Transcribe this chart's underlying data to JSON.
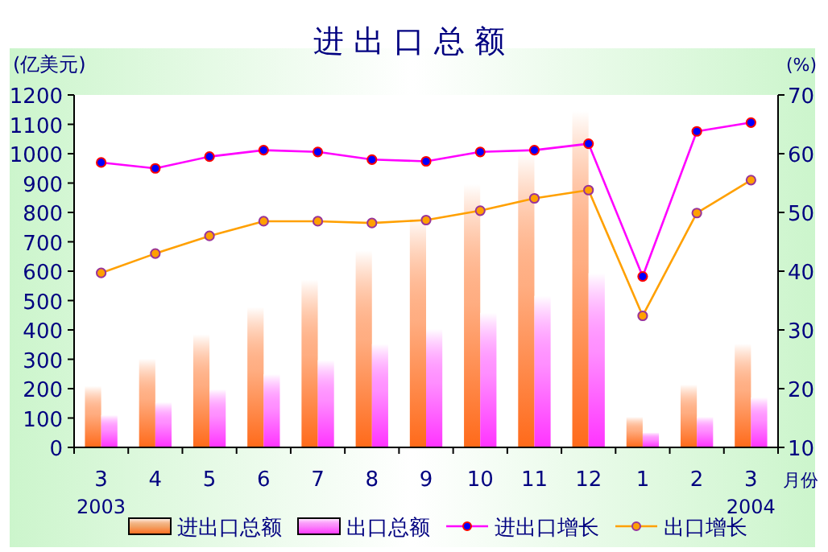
{
  "chart_data": {
    "type": "bar",
    "title": "进出口总额",
    "ylabel": "(亿美元)",
    "y2label": "(%)",
    "xlabel": "月份",
    "categories": [
      "3",
      "4",
      "5",
      "6",
      "7",
      "8",
      "9",
      "10",
      "11",
      "12",
      "1",
      "2",
      "3"
    ],
    "series": [
      {
        "name": "进出口总额",
        "color": "#ff6a1a",
        "values": [
          209,
          302,
          385,
          478,
          571,
          670,
          786,
          896,
          1004,
          1145,
          104,
          214,
          353
        ]
      },
      {
        "name": "出口总额",
        "color": "#ff33ff",
        "values": [
          110,
          154,
          198,
          249,
          297,
          352,
          403,
          458,
          516,
          593,
          51,
          104,
          170
        ]
      },
      {
        "name": "进出口增长",
        "type": "line",
        "axis": "y2",
        "color": "#ff00ff",
        "values": [
          58.5,
          57.5,
          59.5,
          60.6,
          60.3,
          59.0,
          58.7,
          60.3,
          60.6,
          61.7,
          39.1,
          63.8,
          65.3
        ]
      },
      {
        "name": "出口增长",
        "type": "line",
        "axis": "y2",
        "color": "#ffa000",
        "values": [
          39.7,
          43.0,
          46.0,
          48.5,
          48.5,
          48.2,
          48.7,
          50.3,
          52.4,
          53.8,
          32.4,
          49.9,
          55.5
        ]
      }
    ],
    "ylim": [
      0,
      1200
    ],
    "yticks": [
      0,
      100,
      200,
      300,
      400,
      500,
      600,
      700,
      800,
      900,
      1000,
      1100,
      1200
    ],
    "y2lim": [
      10,
      70
    ],
    "y2ticks": [
      10,
      20,
      30,
      40,
      50,
      60,
      70
    ],
    "annotations": [
      "2003",
      "2004"
    ],
    "legend": "bottom",
    "marker": "circle",
    "grid": false
  }
}
